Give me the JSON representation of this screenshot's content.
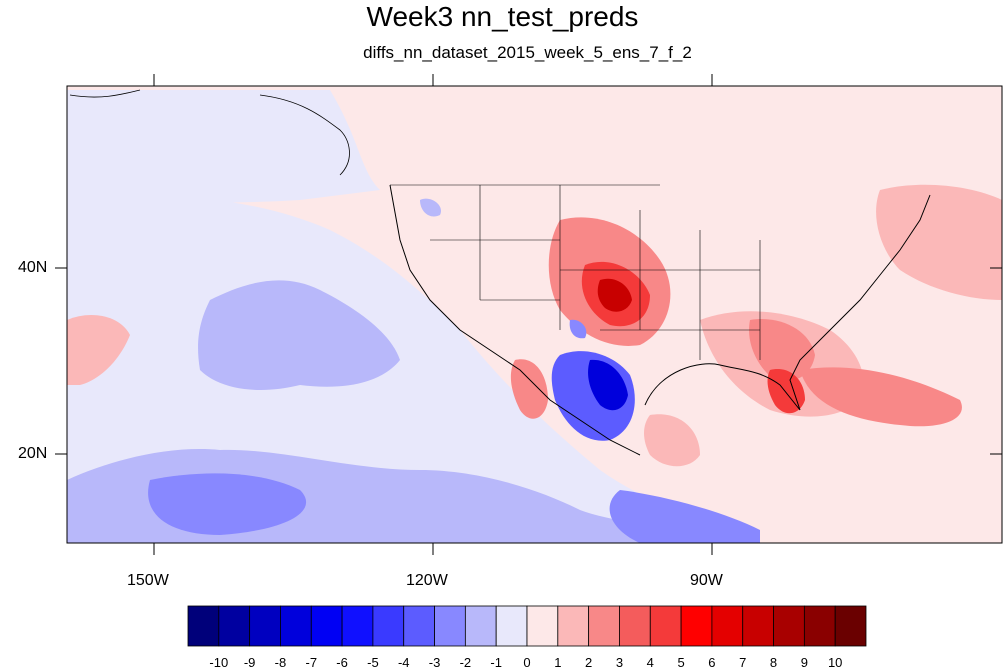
{
  "title": "Week3 nn_test_preds",
  "subtitle": "diffs_nn_dataset_2015_week_5_ens_7_f_2",
  "axes": {
    "lon_labels": [
      "150W",
      "120W",
      "90W"
    ],
    "lat_labels": [
      "40N",
      "20N"
    ]
  },
  "colorbar": {
    "labels": [
      "-10",
      "-9",
      "-8",
      "-7",
      "-6",
      "-5",
      "-4",
      "-3",
      "-2",
      "-1",
      "0",
      "1",
      "2",
      "3",
      "4",
      "5",
      "6",
      "7",
      "8",
      "9",
      "10"
    ],
    "colors": [
      "#00007a",
      "#0000a0",
      "#0000c0",
      "#0000dc",
      "#0000f4",
      "#1010ff",
      "#3a3aff",
      "#5c5cff",
      "#8888ff",
      "#b8b8fa",
      "#e8e8fb",
      "#fde8e8",
      "#fbb8b8",
      "#f88888",
      "#f45c5c",
      "#f43a3a",
      "#ff0000",
      "#e40000",
      "#c80000",
      "#a80000",
      "#8a0000",
      "#6a0000"
    ]
  },
  "map": {
    "background": "#fde8e8",
    "features": "Contoured difference field over North America, Pacific and Gulf of Mexico with coastlines and state borders"
  }
}
